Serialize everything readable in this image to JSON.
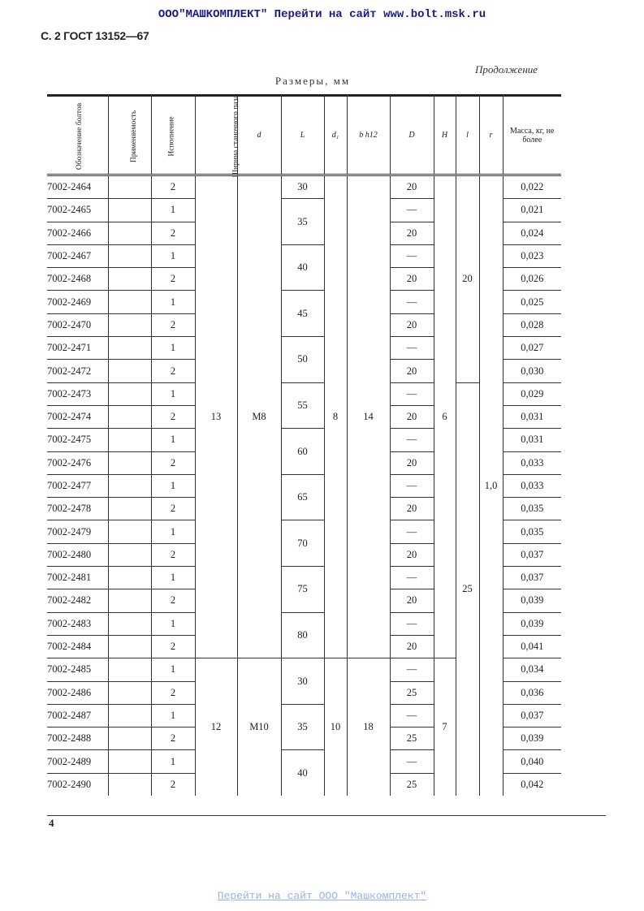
{
  "banner": "ООО\"МАШКОМПЛЕКТ\" Перейти на сайт www.bolt.msk.ru",
  "standard": "С. 2 ГОСТ 13152—67",
  "continuation": "Продолжение",
  "dimensions_caption": "Размеры, мм",
  "headers": [
    "Обозначение болтов",
    "Применяемость",
    "Исполнение",
    "Ширина станочного паза",
    "d",
    "L",
    "d₁",
    "b h12",
    "D",
    "H",
    "l",
    "r",
    "Масса, кг, не более"
  ],
  "rows": [
    {
      "designation": "7002-2464",
      "applicability": "",
      "version": "2",
      "D": "20",
      "mass": "0,022"
    },
    {
      "designation": "7002-2465",
      "applicability": "",
      "version": "1",
      "D": "—",
      "mass": "0,021"
    },
    {
      "designation": "7002-2466",
      "applicability": "",
      "version": "2",
      "D": "20",
      "mass": "0,024"
    },
    {
      "designation": "7002-2467",
      "applicability": "",
      "version": "1",
      "D": "—",
      "mass": "0,023"
    },
    {
      "designation": "7002-2468",
      "applicability": "",
      "version": "2",
      "D": "20",
      "mass": "0,026"
    },
    {
      "designation": "7002-2469",
      "applicability": "",
      "version": "1",
      "D": "—",
      "mass": "0,025"
    },
    {
      "designation": "7002-2470",
      "applicability": "",
      "version": "2",
      "D": "20",
      "mass": "0,028"
    },
    {
      "designation": "7002-2471",
      "applicability": "",
      "version": "1",
      "D": "—",
      "mass": "0,027"
    },
    {
      "designation": "7002-2472",
      "applicability": "",
      "version": "2",
      "D": "20",
      "mass": "0,030"
    },
    {
      "designation": "7002-2473",
      "applicability": "",
      "version": "1",
      "D": "—",
      "mass": "0,029"
    },
    {
      "designation": "7002-2474",
      "applicability": "",
      "version": "2",
      "D": "20",
      "mass": "0,031"
    },
    {
      "designation": "7002-2475",
      "applicability": "",
      "version": "1",
      "D": "—",
      "mass": "0,031"
    },
    {
      "designation": "7002-2476",
      "applicability": "",
      "version": "2",
      "D": "20",
      "mass": "0,033"
    },
    {
      "designation": "7002-2477",
      "applicability": "",
      "version": "1",
      "D": "—",
      "mass": "0,033"
    },
    {
      "designation": "7002-2478",
      "applicability": "",
      "version": "2",
      "D": "20",
      "mass": "0,035"
    },
    {
      "designation": "7002-2479",
      "applicability": "",
      "version": "1",
      "D": "—",
      "mass": "0,035"
    },
    {
      "designation": "7002-2480",
      "applicability": "",
      "version": "2",
      "D": "20",
      "mass": "0,037"
    },
    {
      "designation": "7002-2481",
      "applicability": "",
      "version": "1",
      "D": "—",
      "mass": "0,037"
    },
    {
      "designation": "7002-2482",
      "applicability": "",
      "version": "2",
      "D": "20",
      "mass": "0,039"
    },
    {
      "designation": "7002-2483",
      "applicability": "",
      "version": "1",
      "D": "—",
      "mass": "0,039"
    },
    {
      "designation": "7002-2484",
      "applicability": "",
      "version": "2",
      "D": "20",
      "mass": "0,041"
    },
    {
      "designation": "7002-2485",
      "applicability": "",
      "version": "1",
      "D": "—",
      "mass": "0,034"
    },
    {
      "designation": "7002-2486",
      "applicability": "",
      "version": "2",
      "D": "25",
      "mass": "0,036"
    },
    {
      "designation": "7002-2487",
      "applicability": "",
      "version": "1",
      "D": "—",
      "mass": "0,037"
    },
    {
      "designation": "7002-2488",
      "applicability": "",
      "version": "2",
      "D": "25",
      "mass": "0,039"
    },
    {
      "designation": "7002-2489",
      "applicability": "",
      "version": "1",
      "D": "—",
      "mass": "0,040"
    },
    {
      "designation": "7002-2490",
      "applicability": "",
      "version": "2",
      "D": "25",
      "mass": "0,042"
    }
  ],
  "groups": {
    "slot_width": [
      {
        "value": "13",
        "rows": 21
      },
      {
        "value": "12",
        "rows": 6
      }
    ],
    "d": [
      {
        "value": "M8",
        "rows": 21
      },
      {
        "value": "M10",
        "rows": 6
      }
    ],
    "L": [
      {
        "value": "30",
        "rows": 1
      },
      {
        "value": "35",
        "rows": 2
      },
      {
        "value": "40",
        "rows": 2
      },
      {
        "value": "45",
        "rows": 2
      },
      {
        "value": "50",
        "rows": 2
      },
      {
        "value": "55",
        "rows": 2
      },
      {
        "value": "60",
        "rows": 2
      },
      {
        "value": "65",
        "rows": 2
      },
      {
        "value": "70",
        "rows": 2
      },
      {
        "value": "75",
        "rows": 2
      },
      {
        "value": "80",
        "rows": 2
      },
      {
        "value": "30",
        "rows": 2
      },
      {
        "value": "35",
        "rows": 2
      },
      {
        "value": "40",
        "rows": 2
      }
    ],
    "d1": [
      {
        "value": "8",
        "rows": 21
      },
      {
        "value": "10",
        "rows": 6
      }
    ],
    "b": [
      {
        "value": "14",
        "rows": 21
      },
      {
        "value": "18",
        "rows": 6
      }
    ],
    "H": [
      {
        "value": "6",
        "rows": 21
      },
      {
        "value": "7",
        "rows": 6
      }
    ],
    "l": [
      {
        "value": "20",
        "rows": 9
      },
      {
        "value": "25",
        "rows": 18
      }
    ],
    "r": [
      {
        "value": "1,0",
        "rows": 27
      }
    ]
  },
  "page_number": "4",
  "footer_link": "Перейти на сайт ООО \"Машкомплект\""
}
